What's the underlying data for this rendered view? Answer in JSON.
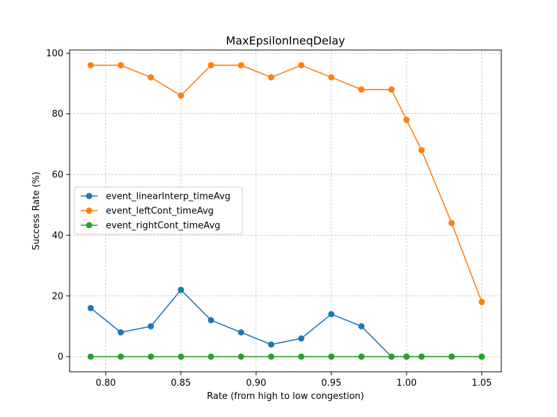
{
  "chart_data": {
    "type": "line",
    "title": "MaxEpsilonIneqDelay",
    "xlabel": "Rate (from high to low congestion)",
    "ylabel": "Success Rate (%)",
    "xlim": [
      0.776,
      1.063
    ],
    "ylim": [
      -5,
      101
    ],
    "xticks": [
      0.8,
      0.85,
      0.9,
      0.95,
      1.0,
      1.05
    ],
    "xtick_labels": [
      "0.80",
      "0.85",
      "0.90",
      "0.95",
      "1.00",
      "1.05"
    ],
    "yticks": [
      0,
      20,
      40,
      60,
      80,
      100
    ],
    "ytick_labels": [
      "0",
      "20",
      "40",
      "60",
      "80",
      "100"
    ],
    "grid": true,
    "legend_position": "center-left",
    "x": [
      0.79,
      0.81,
      0.83,
      0.85,
      0.87,
      0.89,
      0.91,
      0.93,
      0.95,
      0.97,
      0.99,
      1.0,
      1.01,
      1.03,
      1.05
    ],
    "series": [
      {
        "name": "event_linearInterp_timeAvg",
        "color": "#1f77b4",
        "values": [
          16,
          8,
          10,
          22,
          12,
          8,
          4,
          6,
          14,
          10,
          0,
          0,
          0,
          0,
          0
        ]
      },
      {
        "name": "event_leftCont_timeAvg",
        "color": "#ff7f0e",
        "values": [
          96,
          96,
          92,
          86,
          96,
          96,
          92,
          96,
          92,
          88,
          88,
          78,
          68,
          44,
          18
        ]
      },
      {
        "name": "event_rightCont_timeAvg",
        "color": "#2ca02c",
        "values": [
          0,
          0,
          0,
          0,
          0,
          0,
          0,
          0,
          0,
          0,
          0,
          0,
          0,
          0,
          0
        ]
      }
    ]
  }
}
